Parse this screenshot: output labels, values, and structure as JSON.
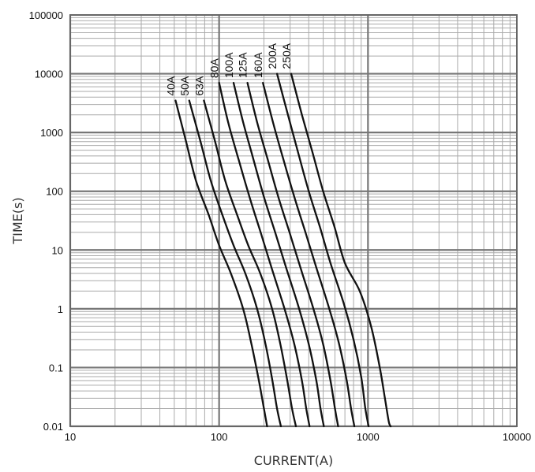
{
  "chart_data": {
    "type": "line",
    "title": "",
    "xlabel": "CURRENT(A)",
    "ylabel": "TIME(s)",
    "xscale": "log",
    "yscale": "log",
    "xlim": [
      10,
      10000
    ],
    "ylim": [
      0.01,
      100000
    ],
    "grid": true,
    "x_ticks": [
      "10",
      "100",
      "1000",
      "10000"
    ],
    "y_ticks": [
      "0.01",
      "0.1",
      "1",
      "10",
      "100",
      "1000",
      "10000",
      "100000"
    ],
    "series": [
      {
        "name": "40A",
        "points": [
          [
            51,
            3500
          ],
          [
            60,
            700
          ],
          [
            70,
            150
          ],
          [
            85,
            40
          ],
          [
            100,
            12
          ],
          [
            120,
            4
          ],
          [
            145,
            1
          ],
          [
            165,
            0.25
          ],
          [
            185,
            0.06
          ],
          [
            200,
            0.02
          ],
          [
            210,
            0.01
          ]
        ]
      },
      {
        "name": "50A",
        "points": [
          [
            63,
            3500
          ],
          [
            75,
            700
          ],
          [
            88,
            150
          ],
          [
            105,
            40
          ],
          [
            125,
            12
          ],
          [
            150,
            4
          ],
          [
            180,
            1
          ],
          [
            205,
            0.25
          ],
          [
            228,
            0.06
          ],
          [
            245,
            0.02
          ],
          [
            260,
            0.01
          ]
        ]
      },
      {
        "name": "63A",
        "points": [
          [
            79,
            3500
          ],
          [
            94,
            700
          ],
          [
            110,
            150
          ],
          [
            132,
            40
          ],
          [
            157,
            12
          ],
          [
            189,
            4
          ],
          [
            227,
            1
          ],
          [
            258,
            0.25
          ],
          [
            287,
            0.06
          ],
          [
            309,
            0.02
          ],
          [
            328,
            0.01
          ]
        ]
      },
      {
        "name": "80A",
        "points": [
          [
            100,
            7000
          ],
          [
            115,
            1500
          ],
          [
            135,
            350
          ],
          [
            160,
            80
          ],
          [
            190,
            20
          ],
          [
            225,
            5
          ],
          [
            275,
            1
          ],
          [
            320,
            0.25
          ],
          [
            360,
            0.06
          ],
          [
            385,
            0.02
          ],
          [
            405,
            0.01
          ]
        ]
      },
      {
        "name": "100A",
        "points": [
          [
            125,
            7000
          ],
          [
            145,
            1500
          ],
          [
            170,
            350
          ],
          [
            200,
            80
          ],
          [
            238,
            20
          ],
          [
            282,
            5
          ],
          [
            345,
            1
          ],
          [
            400,
            0.25
          ],
          [
            450,
            0.06
          ],
          [
            480,
            0.02
          ],
          [
            505,
            0.01
          ]
        ]
      },
      {
        "name": "125A",
        "points": [
          [
            155,
            7000
          ],
          [
            180,
            1500
          ],
          [
            212,
            350
          ],
          [
            250,
            80
          ],
          [
            297,
            20
          ],
          [
            352,
            5
          ],
          [
            430,
            1
          ],
          [
            500,
            0.25
          ],
          [
            560,
            0.06
          ],
          [
            600,
            0.02
          ],
          [
            630,
            0.01
          ]
        ]
      },
      {
        "name": "160A",
        "points": [
          [
            197,
            7000
          ],
          [
            230,
            1500
          ],
          [
            270,
            350
          ],
          [
            320,
            80
          ],
          [
            380,
            20
          ],
          [
            450,
            5
          ],
          [
            550,
            1
          ],
          [
            640,
            0.25
          ],
          [
            720,
            0.06
          ],
          [
            770,
            0.02
          ],
          [
            810,
            0.01
          ]
        ]
      },
      {
        "name": "200A",
        "points": [
          [
            245,
            10000
          ],
          [
            290,
            2000
          ],
          [
            340,
            450
          ],
          [
            400,
            100
          ],
          [
            475,
            25
          ],
          [
            560,
            6
          ],
          [
            690,
            1.2
          ],
          [
            800,
            0.3
          ],
          [
            900,
            0.07
          ],
          [
            960,
            0.02
          ],
          [
            1010,
            0.01
          ]
        ]
      },
      {
        "name": "250A",
        "points": [
          [
            305,
            10000
          ],
          [
            360,
            2000
          ],
          [
            425,
            450
          ],
          [
            500,
            100
          ],
          [
            595,
            25
          ],
          [
            700,
            6
          ],
          [
            880,
            2
          ],
          [
            1050,
            0.5
          ],
          [
            1200,
            0.1
          ],
          [
            1300,
            0.03
          ],
          [
            1380,
            0.012
          ],
          [
            1420,
            0.01
          ]
        ]
      }
    ]
  }
}
